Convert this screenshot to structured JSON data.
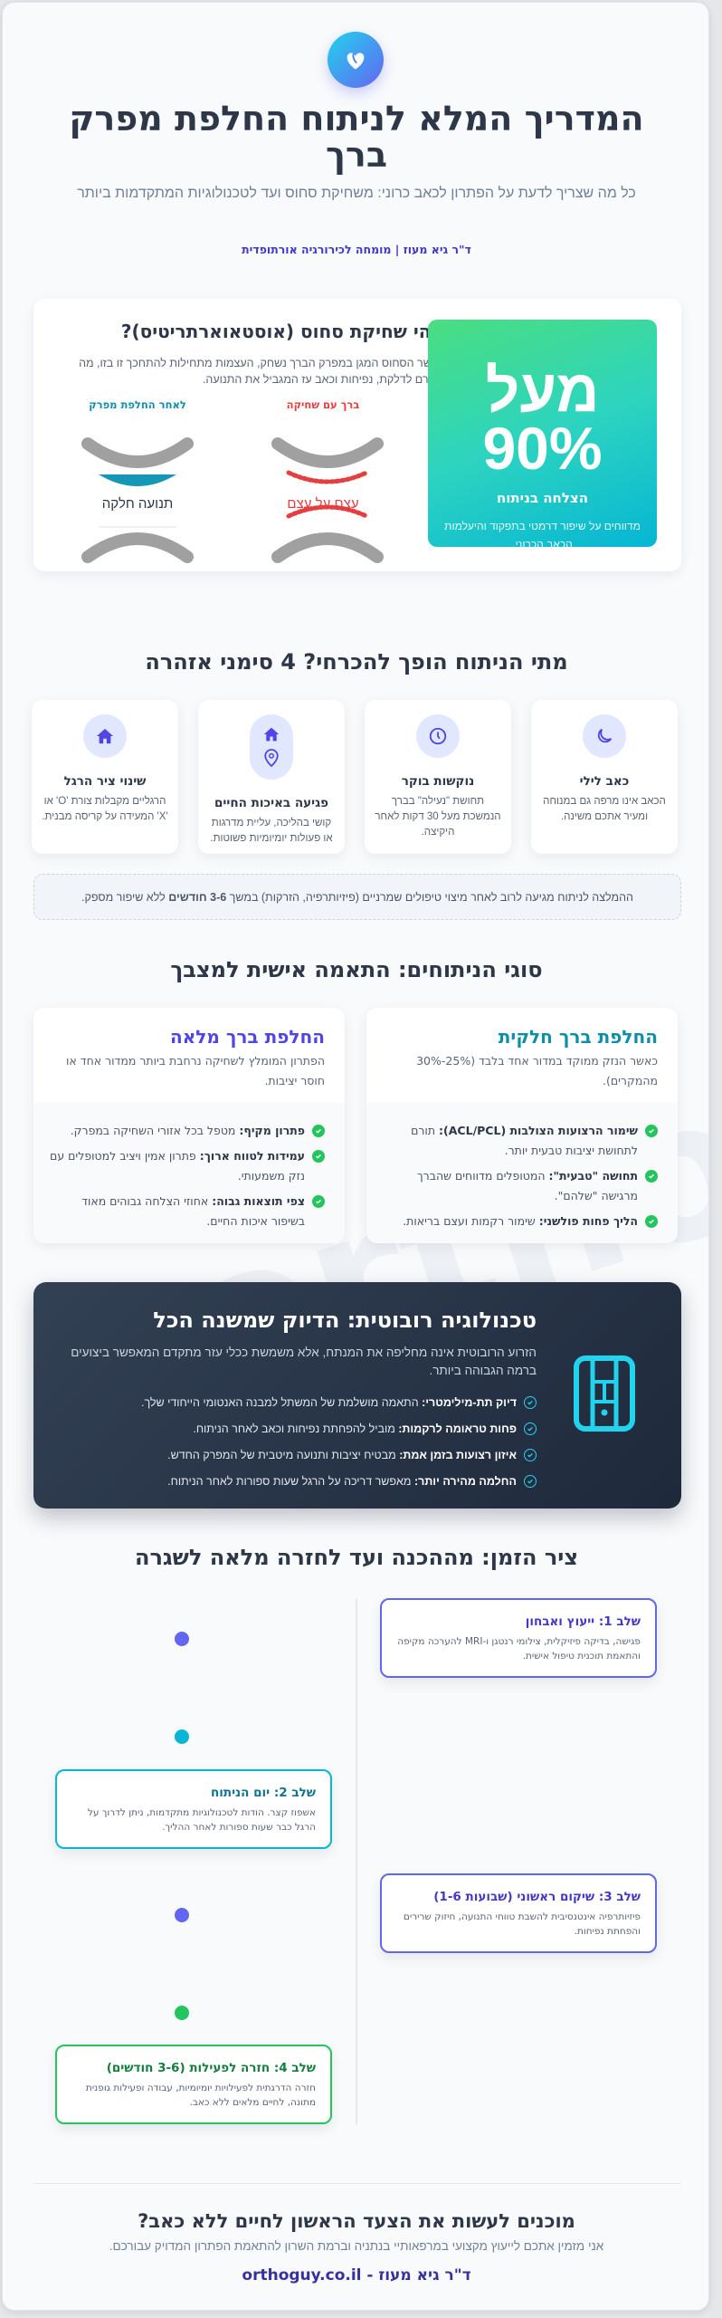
{
  "watermark": "orthoguy",
  "header": {
    "logo_icon": "knee-heart-icon",
    "title": "המדריך המלא לניתוח החלפת מפרק ברך",
    "subtitle": "כל מה שצריך לדעת על הפתרון לכאב כרוני: משחיקת סחוס ועד לטכנולוגיות המתקדמות ביותר",
    "author": "ד\"ר גיא מעוז | מומחה לכירורגיה אורתופדית"
  },
  "intro": {
    "title": "מהי שחיקת סחוס (אוסטאוארתריטיס)?",
    "text": "כאשר הסחוס המגן במפרק הברך נשחק, העצמות מתחילות להתחכך זו בזו, מה שגורם לדלקת, נפיחות וכאב עז המגביל את התנועה.",
    "diagram": {
      "worn_label": "ברך עם שחיקה",
      "worn_caption": "עצם על עצם",
      "worn_color": "#e53e3e",
      "replaced_label": "לאחר החלפת מפרק",
      "replaced_caption": "תנועה חלקה",
      "replaced_color": "#0e8fa8"
    },
    "stat": {
      "value_line1": "מעל",
      "value_line2": "90%",
      "label": "הצלחה בניתוח",
      "desc": "מדווחים על שיפור דרמטי בתפקוד והיעלמות הכאב הכרוני."
    }
  },
  "warnings": {
    "title": "מתי הניתוח הופך להכרחי? 4 סימני אזהרה",
    "items": [
      {
        "icon": "moon-icon",
        "title": "כאב לילי",
        "text": "הכאב אינו מרפה גם במנוחה ומעיר אתכם משינה."
      },
      {
        "icon": "clock-icon",
        "title": "נוקשות בוקר",
        "text": "תחושת \"נעילה\" בברך הנמשכת מעל 30 דקות לאחר היקיצה."
      },
      {
        "icon": "home-location-icon",
        "title": "פגיעה באיכות החיים",
        "text": "קושי בהליכה, עליית מדרגות או פעולות יומיומיות פשוטות."
      },
      {
        "icon": "home-icon",
        "title": "שינוי ציר הרגל",
        "text": "הרגליים מקבלות צורת 'O' או 'X' המעידה על קריסה מבנית."
      }
    ],
    "note_pre": "ההמלצה לניתוח מגיעה לרוב לאחר מיצוי טיפולים שמרניים (פיזיותרפיה, הזרקות) במשך ",
    "note_bold": "3-6 חודשים",
    "note_post": " ללא שיפור מספק."
  },
  "types": {
    "title": "סוגי הניתוחים: התאמה אישית למצבך",
    "partial": {
      "title": "החלפת ברך חלקית",
      "color": "#0e8fa8",
      "desc": "כאשר הנזק ממוקד במדור אחד בלבד (25%-30% מהמקרים).",
      "items": [
        {
          "b": "שימור הרצועות הצולבות (ACL/PCL):",
          "t": " תורם לתחושת יציבות טבעית יותר."
        },
        {
          "b": "תחושה \"טבעית\":",
          "t": " המטופלים מדווחים שהברך מרגישה \"שלהם\"."
        },
        {
          "b": "הליך פחות פולשני:",
          "t": " שימור רקמות ועצם בריאות."
        }
      ]
    },
    "full": {
      "title": "החלפת ברך מלאה",
      "color": "#4f46e5",
      "desc": "הפתרון המומלץ לשחיקה נרחבת ביותר ממדור אחד או חוסר יציבות.",
      "items": [
        {
          "b": "פתרון מקיף:",
          "t": " מטפל בכל אזורי השחיקה במפרק."
        },
        {
          "b": "עמידות לטווח ארוך:",
          "t": " פתרון אמין ויציב למטופלים עם נזק משמעותי."
        },
        {
          "b": "צפי תוצאות גבוה:",
          "t": " אחוזי הצלחה גבוהים מאוד בשיפור איכות החיים."
        }
      ]
    }
  },
  "robotic": {
    "icon": "robot-arm-icon",
    "title": "טכנולוגיה רובוטית: הדיוק שמשנה הכל",
    "desc": "הזרוע הרובוטית אינה מחליפה את המנתח, אלא משמשת ככלי עזר מתקדם המאפשר ביצועים ברמה הגבוהה ביותר.",
    "items": [
      {
        "b": "דיוק תת-מילימטרי:",
        "t": " התאמה מושלמת של המשתל למבנה האנטומי הייחודי שלך."
      },
      {
        "b": "פחות טראומה לרקמות:",
        "t": " מוביל להפחתת נפיחות וכאב לאחר הניתוח."
      },
      {
        "b": "איזון רצועות בזמן אמת:",
        "t": " מבטיח יציבות ותנועה מיטבית של המפרק החדש."
      },
      {
        "b": "החלמה מהירה יותר:",
        "t": " מאפשר דריכה על הרגל שעות ספורות לאחר הניתוח."
      }
    ]
  },
  "timeline": {
    "title": "ציר הזמן: מההכנה ועד לחזרה מלאה לשגרה",
    "steps": [
      {
        "title": "שלב 1: ייעוץ ואבחון",
        "text": "פגישה, בדיקה פיזיקלית, צילומי רנטגן ו-MRI להערכה מקיפה והתאמת תוכנית טיפול אישית.",
        "color": "#6366f1",
        "title_color": "#4338ca"
      },
      {
        "title": "שלב 2: יום הניתוח",
        "text": "אשפוז קצר. הודות לטכנולוגיות מתקדמות, ניתן לדרוך על הרגל כבר שעות ספורות לאחר ההליך.",
        "color": "#06b6d4",
        "title_color": "#0e7490"
      },
      {
        "title": "שלב 3: שיקום ראשוני (שבועות 1-6)",
        "text": "פיזיותרפיה אינטנסיבית להשבת טווחי התנועה, חיזוק שרירים והפחתת נפיחות.",
        "color": "#6366f1",
        "title_color": "#4338ca"
      },
      {
        "title": "שלב 4: חזרה לפעילות (3-6 חודשים)",
        "text": "חזרה הדרגתית לפעילויות יומיומיות, עבודה ופעילות גופנית מתונה, לחיים מלאים ללא כאב.",
        "color": "#22c55e",
        "title_color": "#15803d"
      }
    ]
  },
  "footer": {
    "title": "מוכנים לעשות את הצעד הראשון לחיים ללא כאב?",
    "text": "אני מזמין אתכם לייעוץ מקצועי במרפאותיי בנתניה וברמת השרון להתאמת הפתרון המדויק עבורכם.",
    "site": "ד\"ר גיא מעוז - orthoguy.co.il"
  }
}
